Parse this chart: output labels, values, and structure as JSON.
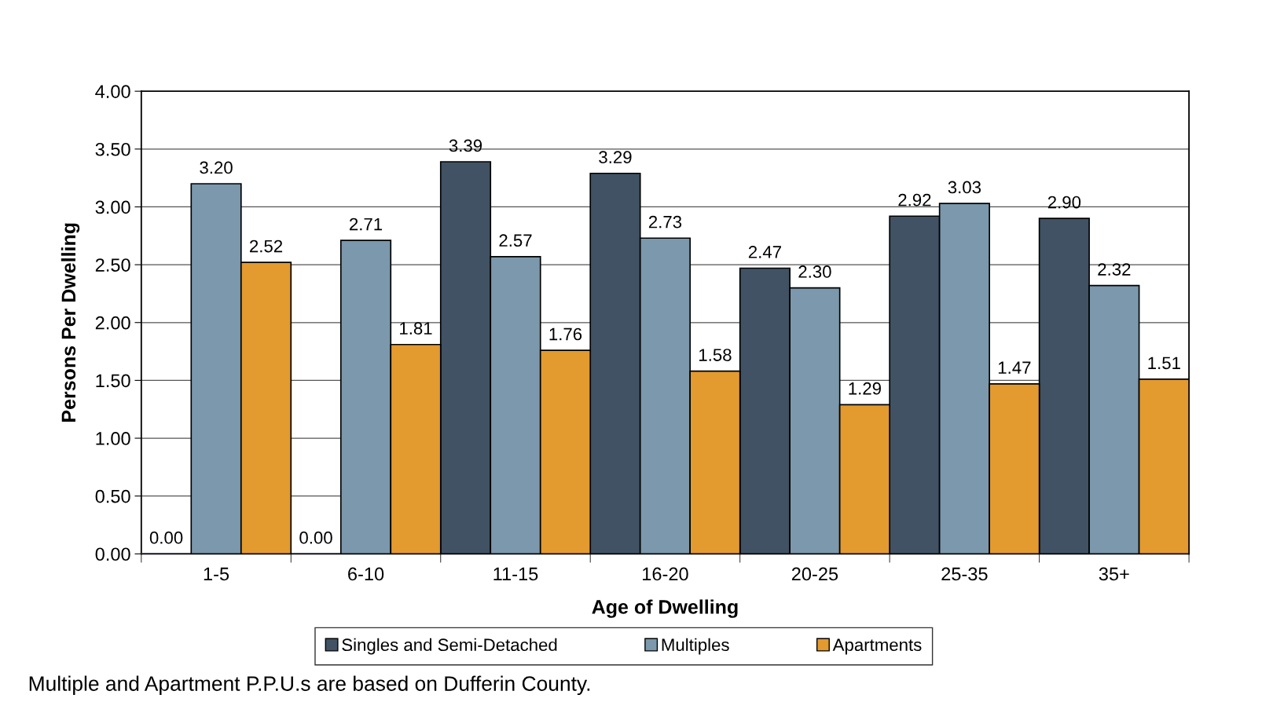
{
  "chart_data": {
    "type": "bar",
    "xlabel": "Age of Dwelling",
    "ylabel": "Persons Per Dwelling",
    "categories": [
      "1-5",
      "6-10",
      "11-15",
      "16-20",
      "20-25",
      "25-35",
      "35+"
    ],
    "series": [
      {
        "name": "Singles and Semi-Detached",
        "color": "#405263",
        "values": [
          0.0,
          0.0,
          3.39,
          3.29,
          2.47,
          2.92,
          2.9
        ],
        "value_labels": [
          "0.00",
          "0.00",
          "3.39",
          "3.29",
          "2.47",
          "2.92",
          "2.90"
        ]
      },
      {
        "name": "Multiples",
        "color": "#7b98ac",
        "values": [
          3.2,
          2.71,
          2.57,
          2.73,
          2.3,
          3.03,
          2.32
        ],
        "value_labels": [
          "3.20",
          "2.71",
          "2.57",
          "2.73",
          "2.30",
          "3.03",
          "2.32"
        ]
      },
      {
        "name": "Apartments",
        "color": "#e39a2e",
        "values": [
          2.52,
          1.81,
          1.76,
          1.58,
          1.29,
          1.47,
          1.51
        ],
        "value_labels": [
          "2.52",
          "1.81",
          "1.76",
          "1.58",
          "1.29",
          "1.47",
          "1.51"
        ]
      }
    ],
    "ylim": [
      0,
      4
    ],
    "yticks": [
      {
        "value": 0,
        "label": "0.00"
      },
      {
        "value": 0.5,
        "label": "0.50"
      },
      {
        "value": 1,
        "label": "1.00"
      },
      {
        "value": 1.5,
        "label": "1.50"
      },
      {
        "value": 2,
        "label": "2.00"
      },
      {
        "value": 2.5,
        "label": "2.50"
      },
      {
        "value": 3,
        "label": "3.00"
      },
      {
        "value": 3.5,
        "label": "3.50"
      },
      {
        "value": 4,
        "label": "4.00"
      }
    ],
    "grid": "y",
    "legend": "bottom",
    "annotations": [
      "Multiple and Apartment P.P.U.s are based on Dufferin County."
    ]
  }
}
